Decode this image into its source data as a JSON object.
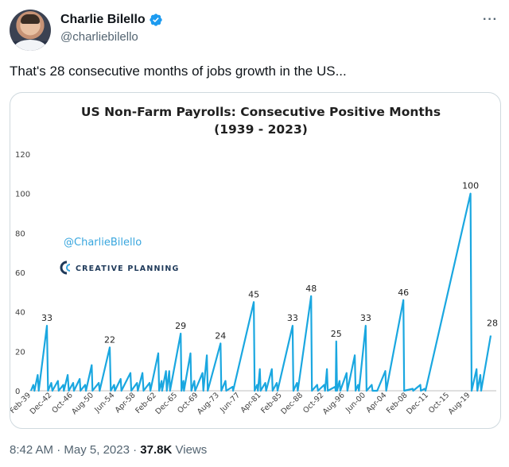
{
  "tweet": {
    "display_name": "Charlie Bilello",
    "handle": "@charliebilello",
    "text": "That's 28 consecutive months of jobs growth in the US...",
    "time": "8:42 AM",
    "separator": "·",
    "date": "May 5, 2023",
    "views_count": "37.8K",
    "views_label": "Views",
    "more_glyph": "···"
  },
  "icons": [
    "avatar",
    "verified-badge-icon",
    "more-icon",
    "creative-planning-logo-icon"
  ],
  "colors": {
    "verified": "#1d9bf0",
    "line": "#1aa7e0",
    "watermark_handle": "#38a6de",
    "watermark_brand": "#1f3a5a"
  },
  "chart_data": {
    "type": "line",
    "title": "US Non-Farm Payrolls: Consecutive Positive Months",
    "subtitle": "(1939 - 2023)",
    "xlabel": "",
    "ylabel": "",
    "ylim": [
      0,
      120
    ],
    "yticks": [
      0,
      20,
      40,
      60,
      80,
      100,
      120
    ],
    "x_range": [
      1939.08,
      2023.3
    ],
    "grid": false,
    "legend": "none",
    "xtick_labels": [
      "Feb-39",
      "Dec-42",
      "Oct-46",
      "Aug-50",
      "Jun-54",
      "Apr-58",
      "Feb-62",
      "Dec-65",
      "Oct-69",
      "Aug-73",
      "Jun-77",
      "Apr-81",
      "Feb-85",
      "Dec-88",
      "Oct-92",
      "Aug-96",
      "Jun-00",
      "Apr-04",
      "Feb-08",
      "Dec-11",
      "Oct-15",
      "Aug-19"
    ],
    "watermark": {
      "handle": "@CharlieBilello",
      "brand": "CREATIVE PLANNING"
    },
    "labeled_peaks": [
      {
        "x": 1942.0,
        "y": 33
      },
      {
        "x": 1953.5,
        "y": 22
      },
      {
        "x": 1966.5,
        "y": 29
      },
      {
        "x": 1973.8,
        "y": 24
      },
      {
        "x": 1979.9,
        "y": 45
      },
      {
        "x": 1987.0,
        "y": 33
      },
      {
        "x": 1990.4,
        "y": 48
      },
      {
        "x": 1995.0,
        "y": 25
      },
      {
        "x": 2000.4,
        "y": 33
      },
      {
        "x": 2007.3,
        "y": 46
      },
      {
        "x": 2019.6,
        "y": 100
      },
      {
        "x": 2023.3,
        "y": 28
      }
    ],
    "points": [
      [
        1939.08,
        0
      ],
      [
        1939.5,
        3
      ],
      [
        1939.7,
        0
      ],
      [
        1940.3,
        8
      ],
      [
        1940.5,
        0
      ],
      [
        1942.0,
        33
      ],
      [
        1942.2,
        0
      ],
      [
        1942.8,
        4
      ],
      [
        1943.0,
        0
      ],
      [
        1944.0,
        5
      ],
      [
        1944.15,
        0
      ],
      [
        1945.0,
        3
      ],
      [
        1945.1,
        0
      ],
      [
        1945.8,
        8
      ],
      [
        1946.0,
        0
      ],
      [
        1946.8,
        4
      ],
      [
        1946.95,
        0
      ],
      [
        1948.0,
        6
      ],
      [
        1948.15,
        0
      ],
      [
        1949.0,
        3
      ],
      [
        1949.15,
        0
      ],
      [
        1950.2,
        13
      ],
      [
        1950.35,
        0
      ],
      [
        1951.5,
        4
      ],
      [
        1951.65,
        0
      ],
      [
        1953.5,
        22
      ],
      [
        1953.7,
        0
      ],
      [
        1954.3,
        3
      ],
      [
        1954.45,
        0
      ],
      [
        1955.5,
        6
      ],
      [
        1955.65,
        0
      ],
      [
        1957.3,
        9
      ],
      [
        1957.45,
        0
      ],
      [
        1958.5,
        4
      ],
      [
        1958.65,
        0
      ],
      [
        1959.5,
        9
      ],
      [
        1959.7,
        0
      ],
      [
        1960.8,
        4
      ],
      [
        1960.95,
        0
      ],
      [
        1962.4,
        19
      ],
      [
        1962.55,
        0
      ],
      [
        1963.0,
        5
      ],
      [
        1963.1,
        0
      ],
      [
        1963.8,
        10
      ],
      [
        1963.95,
        0
      ],
      [
        1964.4,
        10
      ],
      [
        1964.55,
        0
      ],
      [
        1966.5,
        29
      ],
      [
        1966.65,
        0
      ],
      [
        1967.0,
        5
      ],
      [
        1967.1,
        0
      ],
      [
        1968.3,
        19
      ],
      [
        1968.45,
        0
      ],
      [
        1969.0,
        5
      ],
      [
        1969.15,
        0
      ],
      [
        1970.5,
        9
      ],
      [
        1970.65,
        0
      ],
      [
        1971.3,
        18
      ],
      [
        1971.45,
        0
      ],
      [
        1973.8,
        24
      ],
      [
        1973.95,
        0
      ],
      [
        1974.7,
        5
      ],
      [
        1974.85,
        0
      ],
      [
        1976.0,
        2
      ],
      [
        1976.1,
        0
      ],
      [
        1979.9,
        45
      ],
      [
        1980.05,
        0
      ],
      [
        1980.5,
        3
      ],
      [
        1980.65,
        0
      ],
      [
        1981.0,
        11
      ],
      [
        1981.15,
        0
      ],
      [
        1982.0,
        4
      ],
      [
        1982.15,
        0
      ],
      [
        1983.2,
        11
      ],
      [
        1983.35,
        0
      ],
      [
        1984.1,
        4
      ],
      [
        1984.25,
        0
      ],
      [
        1987.0,
        33
      ],
      [
        1987.15,
        0
      ],
      [
        1987.8,
        4
      ],
      [
        1987.95,
        0
      ],
      [
        1990.4,
        48
      ],
      [
        1990.55,
        0
      ],
      [
        1991.5,
        3
      ],
      [
        1991.65,
        0
      ],
      [
        1992.8,
        3
      ],
      [
        1992.95,
        0
      ],
      [
        1993.3,
        11
      ],
      [
        1993.45,
        0
      ],
      [
        1994.8,
        2
      ],
      [
        1994.9,
        0
      ],
      [
        1995.0,
        25
      ],
      [
        1995.15,
        0
      ],
      [
        1995.6,
        5
      ],
      [
        1995.75,
        0
      ],
      [
        1996.9,
        9
      ],
      [
        1997.05,
        0
      ],
      [
        1998.4,
        18
      ],
      [
        1998.55,
        0
      ],
      [
        1999.0,
        3
      ],
      [
        1999.15,
        0
      ],
      [
        2000.4,
        33
      ],
      [
        2000.55,
        0
      ],
      [
        2001.5,
        3
      ],
      [
        2001.65,
        0
      ],
      [
        2002.5,
        0
      ],
      [
        2004.0,
        10
      ],
      [
        2004.15,
        0
      ],
      [
        2007.3,
        46
      ],
      [
        2007.45,
        0
      ],
      [
        2009.0,
        1
      ],
      [
        2009.1,
        0
      ],
      [
        2010.4,
        3
      ],
      [
        2010.5,
        0
      ],
      [
        2011.2,
        1
      ],
      [
        2011.35,
        0
      ],
      [
        2019.6,
        100
      ],
      [
        2019.8,
        0
      ],
      [
        2020.7,
        11
      ],
      [
        2020.85,
        0
      ],
      [
        2021.4,
        8
      ],
      [
        2021.55,
        0
      ],
      [
        2023.3,
        28
      ]
    ]
  }
}
